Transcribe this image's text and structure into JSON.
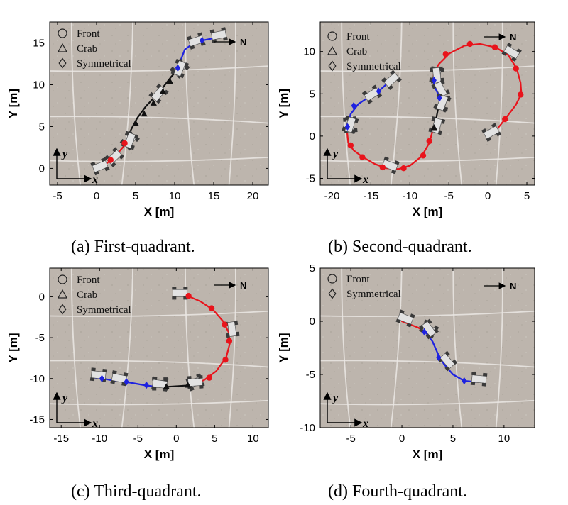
{
  "colors": {
    "front": "#e8141c",
    "crab": "#111111",
    "symmetrical": "#1e22e0",
    "background": "#bdb5ad"
  },
  "chart_data": [
    {
      "type": "line",
      "caption": "(a)  First-quadrant.",
      "xlabel": "X [m]",
      "ylabel": "Y [m]",
      "xlim": [
        -6,
        22
      ],
      "ylim": [
        -2,
        17.5
      ],
      "xticks": [
        "-5",
        "0",
        "5",
        "10",
        "15",
        "20"
      ],
      "yticks": [
        "0",
        "5",
        "10",
        "15"
      ],
      "xtick_values": [
        -5,
        0,
        5,
        10,
        15,
        20
      ],
      "ytick_values": [
        0,
        5,
        10,
        15
      ],
      "legend": [
        "Front",
        "Crab",
        "Symmetrical"
      ],
      "north_label": "N",
      "frame_x_label": "x",
      "frame_y_label": "y",
      "series": [
        {
          "name": "Front",
          "marker": "circle",
          "color": "#e8141c",
          "x": [
            0,
            0.8,
            1.8,
            2.8,
            3.8
          ],
          "y": [
            -0.1,
            0.2,
            1.0,
            1.9,
            3.0
          ],
          "markers": [
            [
              1.8,
              1.0
            ],
            [
              3.6,
              3.0
            ]
          ]
        },
        {
          "name": "Crab",
          "marker": "triangle",
          "color": "#111111",
          "x": [
            3.8,
            4.4,
            5.2,
            6.3,
            7.5,
            8.6,
            9.6,
            10.2
          ],
          "y": [
            3.0,
            4.6,
            6.0,
            7.4,
            8.6,
            9.8,
            11.0,
            11.6
          ],
          "markers": [
            [
              5.0,
              5.4
            ],
            [
              6.1,
              6.5
            ],
            [
              7.3,
              7.8
            ],
            [
              8.5,
              9.2
            ],
            [
              9.4,
              10.4
            ]
          ]
        },
        {
          "name": "Symmetrical",
          "marker": "diamond",
          "color": "#1e22e0",
          "x": [
            10.2,
            10.8,
            11.3,
            12.3,
            13.6,
            15.2
          ],
          "y": [
            11.6,
            13.0,
            14.2,
            14.9,
            15.3,
            15.6
          ],
          "markers": [
            [
              10.4,
              12.0
            ],
            [
              13.5,
              15.3
            ]
          ]
        }
      ]
    },
    {
      "type": "line",
      "caption": "(b)  Second-quadrant.",
      "xlabel": "X [m]",
      "ylabel": "Y [m]",
      "xlim": [
        -21.5,
        6
      ],
      "ylim": [
        -5.8,
        13.5
      ],
      "xticks": [
        "-20",
        "-15",
        "-10",
        "-5",
        "0",
        "5"
      ],
      "yticks": [
        "-5",
        "0",
        "5",
        "10"
      ],
      "xtick_values": [
        -20,
        -15,
        -10,
        -5,
        0,
        5
      ],
      "ytick_values": [
        -5,
        0,
        5,
        10
      ],
      "legend": [
        "Front",
        "Crab",
        "Symmetrical"
      ],
      "north_label": "N",
      "frame_x_label": "x",
      "frame_y_label": "y",
      "series": [
        {
          "name": "Front",
          "marker": "circle",
          "color": "#e8141c",
          "x": [
            0,
            1.0,
            2.2,
            3.6,
            4.3,
            4.2,
            3.7,
            2.6,
            1.0,
            -1.0,
            -3.0,
            -4.9,
            -6.3,
            -6.9,
            -7.0
          ],
          "y": [
            0.1,
            0.6,
            2.0,
            3.7,
            5.0,
            6.3,
            8.0,
            9.6,
            10.5,
            10.9,
            10.7,
            9.8,
            8.5,
            7.5,
            6.9
          ],
          "markers": [
            [
              2.2,
              2.0
            ],
            [
              4.2,
              4.9
            ],
            [
              3.6,
              8.0
            ],
            [
              0.9,
              10.5
            ],
            [
              -2.3,
              10.9
            ],
            [
              -5.4,
              9.7
            ]
          ]
        },
        {
          "name": "Front",
          "marker": "circle",
          "color": "#e8141c",
          "x": [
            -7.0,
            -7.5,
            -8.5,
            -10.0,
            -11.5,
            -13.0,
            -14.5,
            -16.0,
            -17.2,
            -17.9,
            -18.1
          ],
          "y": [
            0.9,
            -0.8,
            -2.4,
            -3.5,
            -3.9,
            -3.8,
            -3.3,
            -2.5,
            -1.7,
            -0.8,
            1.0
          ],
          "markers": [
            [
              -7.5,
              -0.6
            ],
            [
              -8.3,
              -2.3
            ],
            [
              -10.8,
              -3.8
            ],
            [
              -13.5,
              -3.7
            ],
            [
              -16.1,
              -2.5
            ],
            [
              -17.6,
              -1.1
            ]
          ]
        },
        {
          "name": "Crab",
          "marker": "triangle",
          "color": "#111111",
          "x": [
            -6.3,
            -6.6,
            -7.0
          ],
          "y": [
            3.6,
            2.2,
            0.9
          ],
          "markers": [
            [
              -6.9,
              1.0
            ]
          ]
        },
        {
          "name": "Symmetrical",
          "marker": "diamond",
          "color": "#1e22e0",
          "x": [
            -7.0,
            -6.9,
            -6.5,
            -6.0,
            -6.3
          ],
          "y": [
            6.9,
            6.0,
            5.2,
            4.3,
            3.6
          ],
          "markers": [
            [
              -6.9,
              6.6
            ],
            [
              -6.2,
              4.5
            ]
          ]
        },
        {
          "name": "Symmetrical",
          "marker": "diamond",
          "color": "#1e22e0",
          "x": [
            -18.1,
            -17.6,
            -16.6,
            -15.3,
            -13.9,
            -12.8
          ],
          "y": [
            1.0,
            2.6,
            3.8,
            4.6,
            5.4,
            6.3
          ],
          "markers": [
            [
              -18.0,
              1.1
            ],
            [
              -17.2,
              3.6
            ],
            [
              -14.0,
              5.3
            ]
          ]
        }
      ]
    },
    {
      "type": "line",
      "caption": "(c)  Third-quadrant.",
      "xlabel": "X [m]",
      "ylabel": "Y [m]",
      "xlim": [
        -16.5,
        12
      ],
      "ylim": [
        -16,
        3.5
      ],
      "xticks": [
        "-15",
        "-10",
        "-5",
        "0",
        "5",
        "10"
      ],
      "yticks": [
        "-15",
        "-10",
        "-5",
        "0"
      ],
      "xtick_values": [
        -15,
        -10,
        -5,
        0,
        5,
        10
      ],
      "ytick_values": [
        -15,
        -10,
        -5,
        0
      ],
      "legend": [
        "Front",
        "Crab",
        "Symmetrical"
      ],
      "north_label": "N",
      "frame_x_label": "x",
      "frame_y_label": "y",
      "series": [
        {
          "name": "Front",
          "marker": "circle",
          "color": "#e8141c",
          "x": [
            0.0,
            1.5,
            3.2,
            4.8,
            6.1,
            6.8,
            7.0,
            6.5,
            5.2,
            3.6,
            2.0
          ],
          "y": [
            0.1,
            0.1,
            -0.6,
            -1.6,
            -3.0,
            -4.3,
            -5.6,
            -7.4,
            -9.1,
            -10.2,
            -10.8
          ],
          "markers": [
            [
              1.6,
              0.1
            ],
            [
              4.6,
              -1.4
            ],
            [
              6.3,
              -3.4
            ],
            [
              6.9,
              -5.4
            ],
            [
              6.4,
              -7.7
            ],
            [
              4.3,
              -9.9
            ]
          ]
        },
        {
          "name": "Crab",
          "marker": "triangle",
          "color": "#111111",
          "x": [
            2.0,
            0.5,
            -1.2,
            -2.6
          ],
          "y": [
            -10.8,
            -10.9,
            -11.0,
            -11.0
          ],
          "markers": [
            [
              1.5,
              -10.8
            ],
            [
              -1.3,
              -11.0
            ]
          ]
        },
        {
          "name": "Symmetrical",
          "marker": "diamond",
          "color": "#1e22e0",
          "x": [
            -2.6,
            -4.2,
            -6.0,
            -7.9,
            -9.6,
            -10.6
          ],
          "y": [
            -11.0,
            -10.8,
            -10.5,
            -10.3,
            -10.0,
            -9.9
          ],
          "markers": [
            [
              -3.9,
              -10.8
            ],
            [
              -6.5,
              -10.4
            ],
            [
              -9.7,
              -10.0
            ]
          ]
        }
      ]
    },
    {
      "type": "line",
      "caption": "(d)  Fourth-quadrant.",
      "xlabel": "X [m]",
      "ylabel": "Y [m]",
      "xlim": [
        -8,
        13
      ],
      "ylim": [
        -10,
        5
      ],
      "xticks": [
        "-5",
        "0",
        "5",
        "10"
      ],
      "yticks": [
        "-10",
        "-5",
        "0",
        "5"
      ],
      "xtick_values": [
        -5,
        0,
        5,
        10
      ],
      "ytick_values": [
        -10,
        -5,
        0,
        5
      ],
      "legend": [
        "Front",
        "Symmetrical"
      ],
      "north_label": "N",
      "frame_x_label": "x",
      "frame_y_label": "y",
      "series": [
        {
          "name": "Front",
          "marker": "circle",
          "color": "#e8141c",
          "x": [
            0.0,
            0.8,
            1.6,
            2.3
          ],
          "y": [
            0.0,
            -0.3,
            -0.6,
            -1.0
          ],
          "markers": []
        },
        {
          "name": "Symmetrical",
          "marker": "diamond",
          "color": "#1e22e0",
          "x": [
            2.3,
            3.0,
            3.5,
            4.1,
            5.0,
            6.1,
            7.2
          ],
          "y": [
            -1.0,
            -1.9,
            -3.0,
            -4.0,
            -5.0,
            -5.6,
            -5.7
          ],
          "markers": [
            [
              2.2,
              -1.0
            ],
            [
              3.6,
              -3.4
            ],
            [
              6.1,
              -5.6
            ]
          ]
        }
      ]
    }
  ]
}
